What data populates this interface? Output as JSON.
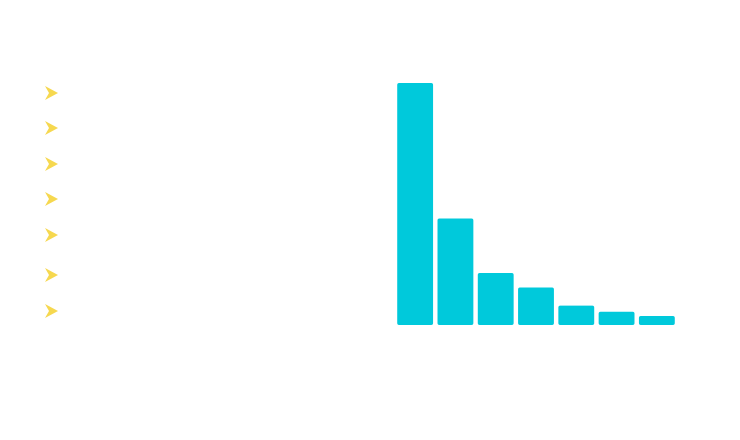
{
  "chart_data": {
    "type": "bar",
    "categories": [
      null,
      null,
      null,
      null,
      null,
      null,
      null
    ],
    "values": [
      100,
      44,
      21.5,
      15.5,
      8,
      5.5,
      3.7
    ],
    "color": "#00c9db",
    "ylim": [
      0,
      100
    ]
  }
}
